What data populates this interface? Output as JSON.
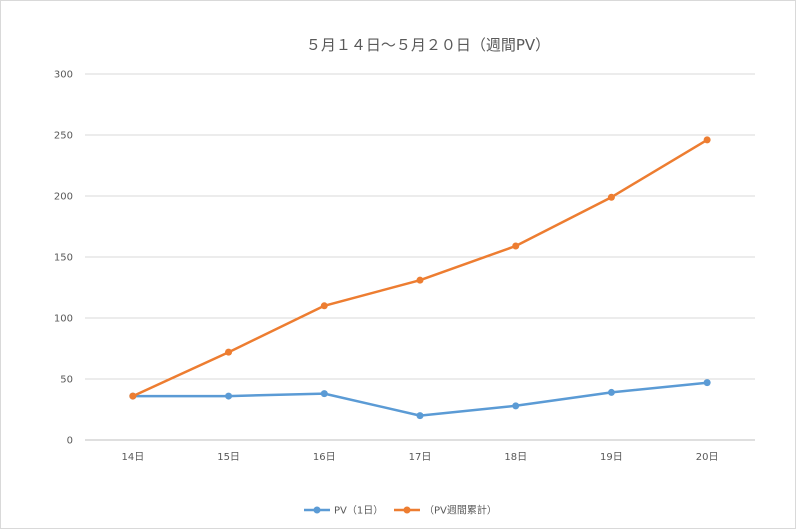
{
  "chart_data": {
    "type": "line",
    "title": "５月１４日～５月２０日（週間PV）",
    "categories": [
      "14日",
      "15日",
      "16日",
      "17日",
      "18日",
      "19日",
      "20日"
    ],
    "ylim": [
      0,
      300
    ],
    "yticks": [
      0,
      50,
      100,
      150,
      200,
      250,
      300
    ],
    "grid": true,
    "legend_position": "bottom",
    "series": [
      {
        "name": "PV（1日）",
        "color": "#5b9bd5",
        "values": [
          36,
          36,
          38,
          20,
          28,
          39,
          47
        ]
      },
      {
        "name": "（PV週間累計）",
        "color": "#ed7d31",
        "values": [
          36,
          72,
          110,
          131,
          159,
          199,
          246
        ]
      }
    ]
  }
}
